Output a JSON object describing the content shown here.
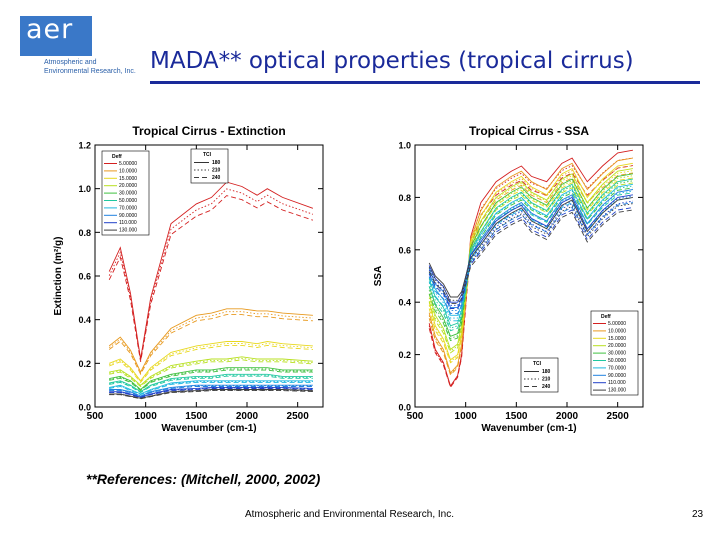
{
  "logo": {
    "name": "aer",
    "tagline_1": "Atmospheric and",
    "tagline_2": "Environmental Research, Inc."
  },
  "slide": {
    "title": "MADA** optical properties (tropical cirrus)",
    "references": "**References: (Mitchell, 2000, 2002)",
    "footer": "Atmospheric and Environmental Research, Inc.",
    "page_number": "23"
  },
  "chart_data": [
    {
      "type": "line",
      "title": "Tropical Cirrus - Extinction",
      "xlabel": "Wavenumber (cm-1)",
      "ylabel": "Extinction (m²/g)",
      "xlim": [
        500,
        2750
      ],
      "ylim": [
        0.0,
        1.2
      ],
      "xticks": [
        "500",
        "1000",
        "1500",
        "2000",
        "2500"
      ],
      "yticks": [
        "0.0",
        "0.2",
        "0.4",
        "0.6",
        "0.8",
        "1.0",
        "1.2"
      ],
      "legend_deff_title": "Deff",
      "legend_tci_title": "TCI",
      "legend_tci": [
        "180",
        "210",
        "240"
      ],
      "legend_placement": "top-left",
      "series": [
        {
          "name": "5.00000",
          "color": "#d42020",
          "x": [
            640,
            750,
            850,
            950,
            1050,
            1250,
            1500,
            1650,
            1800,
            1950,
            2100,
            2200,
            2350,
            2650
          ],
          "values": [
            0.62,
            0.73,
            0.52,
            0.22,
            0.5,
            0.84,
            0.93,
            0.96,
            1.03,
            1.01,
            0.97,
            1.0,
            0.96,
            0.91
          ]
        },
        {
          "name": "10.0000",
          "color": "#e89a20",
          "x": [
            640,
            750,
            850,
            950,
            1050,
            1250,
            1500,
            1650,
            1800,
            1950,
            2100,
            2200,
            2350,
            2650
          ],
          "values": [
            0.28,
            0.32,
            0.26,
            0.16,
            0.25,
            0.36,
            0.42,
            0.43,
            0.45,
            0.45,
            0.44,
            0.44,
            0.43,
            0.42
          ]
        },
        {
          "name": "15.0000",
          "color": "#e8d820",
          "x": [
            640,
            750,
            850,
            950,
            1050,
            1250,
            1500,
            1650,
            1800,
            1950,
            2100,
            2200,
            2350,
            2650
          ],
          "values": [
            0.2,
            0.22,
            0.18,
            0.12,
            0.18,
            0.25,
            0.28,
            0.29,
            0.3,
            0.3,
            0.29,
            0.3,
            0.29,
            0.28
          ]
        },
        {
          "name": "20.0000",
          "color": "#b8e020",
          "x": [
            640,
            750,
            850,
            950,
            1050,
            1250,
            1500,
            1650,
            1800,
            1950,
            2100,
            2200,
            2350,
            2650
          ],
          "values": [
            0.16,
            0.17,
            0.14,
            0.1,
            0.14,
            0.19,
            0.21,
            0.22,
            0.22,
            0.23,
            0.22,
            0.22,
            0.22,
            0.21
          ]
        },
        {
          "name": "30.0000",
          "color": "#40c040",
          "x": [
            640,
            750,
            850,
            950,
            1050,
            1250,
            1500,
            1650,
            1800,
            1950,
            2100,
            2200,
            2350,
            2650
          ],
          "values": [
            0.13,
            0.14,
            0.12,
            0.08,
            0.12,
            0.15,
            0.17,
            0.17,
            0.18,
            0.18,
            0.18,
            0.18,
            0.17,
            0.17
          ]
        },
        {
          "name": "50.0000",
          "color": "#20c8a0",
          "x": [
            640,
            750,
            850,
            950,
            1050,
            1250,
            1500,
            1650,
            1800,
            1950,
            2100,
            2200,
            2350,
            2650
          ],
          "values": [
            0.11,
            0.12,
            0.1,
            0.07,
            0.1,
            0.13,
            0.14,
            0.14,
            0.15,
            0.15,
            0.15,
            0.15,
            0.14,
            0.14
          ]
        },
        {
          "name": "70.0000",
          "color": "#20b8e0",
          "x": [
            640,
            750,
            850,
            950,
            1050,
            1250,
            1500,
            1650,
            1800,
            1950,
            2100,
            2200,
            2350,
            2650
          ],
          "values": [
            0.09,
            0.1,
            0.08,
            0.06,
            0.08,
            0.11,
            0.12,
            0.12,
            0.12,
            0.12,
            0.12,
            0.12,
            0.12,
            0.12
          ]
        },
        {
          "name": "90.0000",
          "color": "#2080e0",
          "x": [
            640,
            750,
            850,
            950,
            1050,
            1250,
            1500,
            1650,
            1800,
            1950,
            2100,
            2200,
            2350,
            2650
          ],
          "values": [
            0.08,
            0.08,
            0.07,
            0.05,
            0.07,
            0.09,
            0.1,
            0.1,
            0.1,
            0.1,
            0.1,
            0.1,
            0.1,
            0.1
          ]
        },
        {
          "name": "110.000",
          "color": "#2040c8",
          "x": [
            640,
            750,
            850,
            950,
            1050,
            1250,
            1500,
            1650,
            1800,
            1950,
            2100,
            2200,
            2350,
            2650
          ],
          "values": [
            0.07,
            0.07,
            0.06,
            0.045,
            0.06,
            0.08,
            0.085,
            0.09,
            0.09,
            0.09,
            0.09,
            0.09,
            0.09,
            0.085
          ]
        },
        {
          "name": "130.000",
          "color": "#404040",
          "x": [
            640,
            750,
            850,
            950,
            1050,
            1250,
            1500,
            1650,
            1800,
            1950,
            2100,
            2200,
            2350,
            2650
          ],
          "values": [
            0.06,
            0.06,
            0.05,
            0.04,
            0.05,
            0.07,
            0.075,
            0.08,
            0.08,
            0.08,
            0.08,
            0.08,
            0.08,
            0.075
          ]
        }
      ]
    },
    {
      "type": "line",
      "title": "Tropical Cirrus - SSA",
      "xlabel": "Wavenumber (cm-1)",
      "ylabel": "SSA",
      "xlim": [
        500,
        2750
      ],
      "ylim": [
        0.0,
        1.0
      ],
      "xticks": [
        "500",
        "1000",
        "1500",
        "2000",
        "2500"
      ],
      "yticks": [
        "0.0",
        "0.2",
        "0.4",
        "0.6",
        "0.8",
        "1.0"
      ],
      "legend_deff_title": "Deff",
      "legend_tci_title": "TCI",
      "legend_tci": [
        "180",
        "210",
        "240"
      ],
      "legend_placement": "bottom-right",
      "series": [
        {
          "name": "5.00000",
          "color": "#d42020",
          "x": [
            640,
            700,
            780,
            850,
            920,
            960,
            1050,
            1150,
            1300,
            1450,
            1550,
            1650,
            1800,
            1950,
            2050,
            2200,
            2350,
            2500,
            2650
          ],
          "values": [
            0.32,
            0.22,
            0.17,
            0.08,
            0.12,
            0.2,
            0.65,
            0.78,
            0.86,
            0.9,
            0.92,
            0.88,
            0.86,
            0.93,
            0.95,
            0.86,
            0.92,
            0.97,
            0.98
          ]
        },
        {
          "name": "10.0000",
          "color": "#e89a20",
          "x": [
            640,
            700,
            780,
            850,
            920,
            960,
            1050,
            1150,
            1300,
            1450,
            1550,
            1650,
            1800,
            1950,
            2050,
            2200,
            2350,
            2500,
            2650
          ],
          "values": [
            0.36,
            0.27,
            0.22,
            0.13,
            0.16,
            0.24,
            0.64,
            0.75,
            0.84,
            0.88,
            0.9,
            0.86,
            0.83,
            0.91,
            0.93,
            0.83,
            0.89,
            0.94,
            0.95
          ]
        },
        {
          "name": "15.0000",
          "color": "#e8d820",
          "x": [
            640,
            700,
            780,
            850,
            920,
            960,
            1050,
            1150,
            1300,
            1450,
            1550,
            1650,
            1800,
            1950,
            2050,
            2200,
            2350,
            2500,
            2650
          ],
          "values": [
            0.4,
            0.31,
            0.26,
            0.18,
            0.2,
            0.28,
            0.63,
            0.73,
            0.82,
            0.86,
            0.88,
            0.84,
            0.81,
            0.89,
            0.91,
            0.8,
            0.87,
            0.92,
            0.93
          ]
        },
        {
          "name": "20.0000",
          "color": "#b8e020",
          "x": [
            640,
            700,
            780,
            850,
            920,
            960,
            1050,
            1150,
            1300,
            1450,
            1550,
            1650,
            1800,
            1950,
            2050,
            2200,
            2350,
            2500,
            2650
          ],
          "values": [
            0.43,
            0.35,
            0.3,
            0.22,
            0.24,
            0.31,
            0.62,
            0.71,
            0.8,
            0.84,
            0.86,
            0.82,
            0.79,
            0.87,
            0.89,
            0.78,
            0.85,
            0.9,
            0.91
          ]
        },
        {
          "name": "30.0000",
          "color": "#40c040",
          "x": [
            640,
            700,
            780,
            850,
            920,
            960,
            1050,
            1150,
            1300,
            1450,
            1550,
            1650,
            1800,
            1950,
            2050,
            2200,
            2350,
            2500,
            2650
          ],
          "values": [
            0.46,
            0.39,
            0.34,
            0.27,
            0.28,
            0.34,
            0.61,
            0.69,
            0.78,
            0.82,
            0.84,
            0.8,
            0.77,
            0.85,
            0.87,
            0.76,
            0.83,
            0.88,
            0.89
          ]
        },
        {
          "name": "50.0000",
          "color": "#20c8a0",
          "x": [
            640,
            700,
            780,
            850,
            920,
            960,
            1050,
            1150,
            1300,
            1450,
            1550,
            1650,
            1800,
            1950,
            2050,
            2200,
            2350,
            2500,
            2650
          ],
          "values": [
            0.49,
            0.42,
            0.38,
            0.31,
            0.32,
            0.37,
            0.6,
            0.67,
            0.76,
            0.8,
            0.82,
            0.78,
            0.75,
            0.83,
            0.85,
            0.74,
            0.81,
            0.86,
            0.87
          ]
        },
        {
          "name": "70.0000",
          "color": "#20b8e0",
          "x": [
            640,
            700,
            780,
            850,
            920,
            960,
            1050,
            1150,
            1300,
            1450,
            1550,
            1650,
            1800,
            1950,
            2050,
            2200,
            2350,
            2500,
            2650
          ],
          "values": [
            0.51,
            0.45,
            0.41,
            0.35,
            0.35,
            0.39,
            0.59,
            0.66,
            0.74,
            0.78,
            0.8,
            0.76,
            0.73,
            0.81,
            0.83,
            0.72,
            0.79,
            0.84,
            0.85
          ]
        },
        {
          "name": "90.0000",
          "color": "#2080e0",
          "x": [
            640,
            700,
            780,
            850,
            920,
            960,
            1050,
            1150,
            1300,
            1450,
            1550,
            1650,
            1800,
            1950,
            2050,
            2200,
            2350,
            2500,
            2650
          ],
          "values": [
            0.53,
            0.47,
            0.44,
            0.38,
            0.38,
            0.41,
            0.58,
            0.64,
            0.72,
            0.76,
            0.78,
            0.74,
            0.71,
            0.79,
            0.81,
            0.7,
            0.77,
            0.82,
            0.83
          ]
        },
        {
          "name": "110.000",
          "color": "#2040c8",
          "x": [
            640,
            700,
            780,
            850,
            920,
            960,
            1050,
            1150,
            1300,
            1450,
            1550,
            1650,
            1800,
            1950,
            2050,
            2200,
            2350,
            2500,
            2650
          ],
          "values": [
            0.54,
            0.49,
            0.46,
            0.4,
            0.4,
            0.43,
            0.58,
            0.63,
            0.71,
            0.75,
            0.77,
            0.72,
            0.69,
            0.78,
            0.8,
            0.68,
            0.75,
            0.8,
            0.81
          ]
        },
        {
          "name": "130.000",
          "color": "#404040",
          "x": [
            640,
            700,
            780,
            850,
            920,
            960,
            1050,
            1150,
            1300,
            1450,
            1550,
            1650,
            1800,
            1950,
            2050,
            2200,
            2350,
            2500,
            2650
          ],
          "values": [
            0.55,
            0.5,
            0.47,
            0.42,
            0.42,
            0.44,
            0.57,
            0.62,
            0.7,
            0.74,
            0.76,
            0.71,
            0.68,
            0.77,
            0.79,
            0.67,
            0.74,
            0.79,
            0.8
          ]
        }
      ]
    }
  ]
}
